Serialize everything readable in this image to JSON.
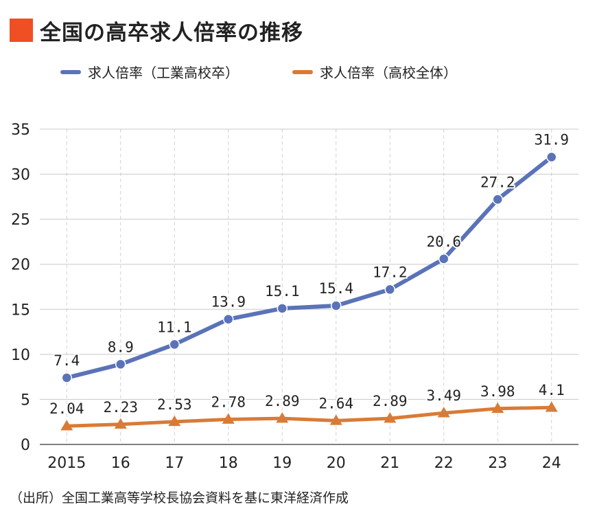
{
  "title": "全国の高卒求人倍率の推移",
  "source": "（出所）全国工業高等学校長協会資料を基に東洋経済作成",
  "chart_data": {
    "type": "line",
    "categories": [
      "2015",
      "16",
      "17",
      "18",
      "19",
      "20",
      "21",
      "22",
      "23",
      "24"
    ],
    "series": [
      {
        "name": "求人倍率（工業高校卒）",
        "color": "#5a73b8",
        "marker": "circle",
        "values": [
          7.4,
          8.9,
          11.1,
          13.9,
          15.1,
          15.4,
          17.2,
          20.6,
          27.2,
          31.9
        ],
        "labels": [
          "7.4",
          "8.9",
          "11.1",
          "13.9",
          "15.1",
          "15.4",
          "17.2",
          "20.6",
          "27.2",
          "31.9"
        ]
      },
      {
        "name": "求人倍率（高校全体）",
        "color": "#d97b36",
        "marker": "triangle",
        "values": [
          2.04,
          2.23,
          2.53,
          2.78,
          2.89,
          2.64,
          2.89,
          3.49,
          3.98,
          4.1
        ],
        "labels": [
          "2.04",
          "2.23",
          "2.53",
          "2.78",
          "2.89",
          "2.64",
          "2.89",
          "3.49",
          "3.98",
          "4.1"
        ]
      }
    ],
    "y_ticks": [
      "0",
      "5",
      "10",
      "15",
      "20",
      "25",
      "30",
      "35"
    ],
    "ylim": [
      0,
      35
    ],
    "legend_position": "top-left",
    "grid": true
  }
}
